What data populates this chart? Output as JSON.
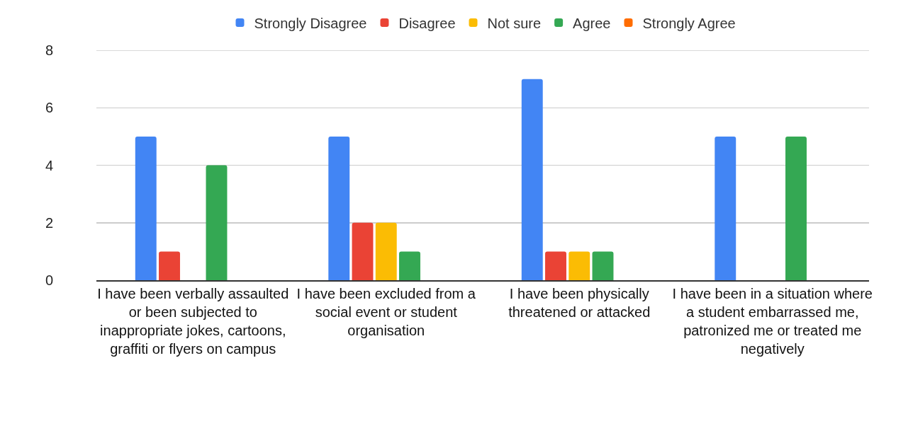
{
  "chart_data": {
    "type": "bar",
    "categories": [
      "I have been verbally assaulted or been subjected to inappropriate jokes, cartoons, graffiti or flyers on campus",
      "I have been excluded from a social event or student organisation",
      "I have been physically threatened or attacked",
      "I have been in a situation where a student embarrassed me, patronized me or treated me negatively"
    ],
    "series": [
      {
        "name": "Strongly Disagree",
        "color": "#4285f4",
        "values": [
          5,
          5,
          7,
          5
        ]
      },
      {
        "name": "Disagree",
        "color": "#ea4335",
        "values": [
          1,
          2,
          1,
          0
        ]
      },
      {
        "name": "Not sure",
        "color": "#fbbc04",
        "values": [
          0,
          2,
          1,
          0
        ]
      },
      {
        "name": "Agree",
        "color": "#34a853",
        "values": [
          4,
          1,
          1,
          5
        ]
      },
      {
        "name": "Strongly Agree",
        "color": "#ff6d01",
        "values": [
          0,
          0,
          0,
          0
        ]
      }
    ],
    "ylim": [
      0,
      8
    ],
    "yticks": [
      0,
      2,
      4,
      6,
      8
    ],
    "grid": "y",
    "legend": "top"
  }
}
